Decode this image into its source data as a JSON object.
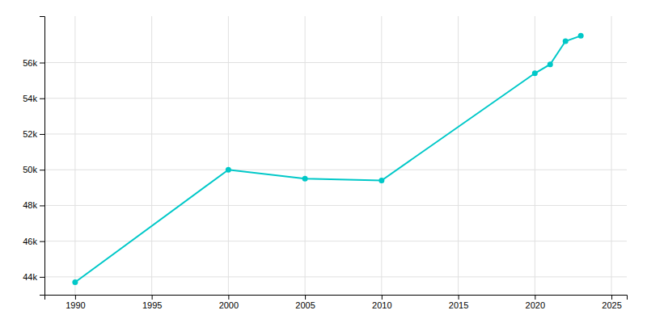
{
  "chart_data": {
    "type": "line",
    "x": [
      1990,
      2000,
      2005,
      2010,
      2020,
      2021,
      2022,
      2023
    ],
    "values": [
      43700,
      50000,
      49500,
      49400,
      55400,
      55900,
      57200,
      57500
    ],
    "color": "#00C8C8",
    "marker": "circle",
    "xlim": [
      1988,
      2026
    ],
    "ylim": [
      43000,
      58600
    ],
    "xticks": [
      1990,
      1995,
      2000,
      2005,
      2010,
      2015,
      2020,
      2025
    ],
    "yticks": [
      {
        "value": 44000,
        "label": "44k"
      },
      {
        "value": 46000,
        "label": "46k"
      },
      {
        "value": 48000,
        "label": "48k"
      },
      {
        "value": 50000,
        "label": "50k"
      },
      {
        "value": 52000,
        "label": "52k"
      },
      {
        "value": 54000,
        "label": "54k"
      },
      {
        "value": 56000,
        "label": "56k"
      }
    ],
    "grid": true
  }
}
